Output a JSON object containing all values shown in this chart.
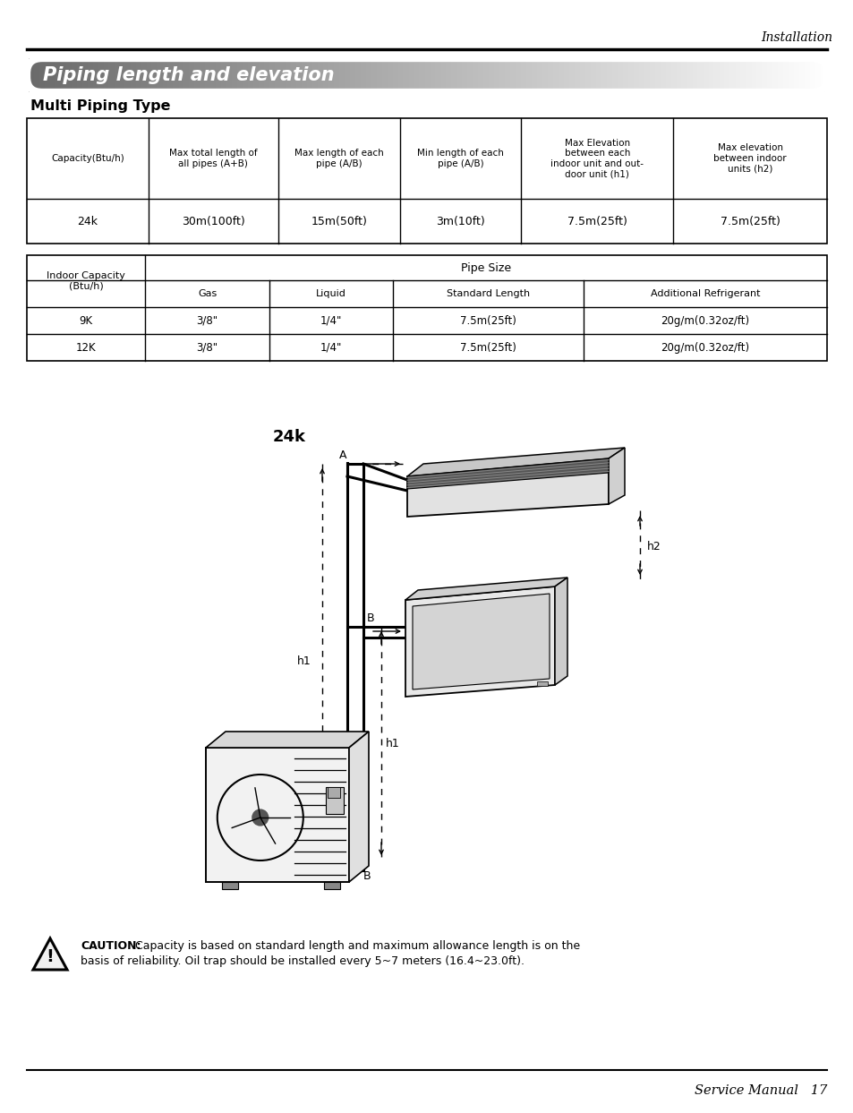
{
  "top_right_label": "Installation",
  "page_title": "Piping length and elevation",
  "section_header": "Multi Piping Type",
  "table1_headers": [
    "Capacity(Btu/h)",
    "Max total length of\nall pipes (A+B)",
    "Max length of each\npipe (A/B)",
    "Min length of each\npipe (A/B)",
    "Max Elevation\nbetween each\nindoor unit and out-\ndoor unit (h1)",
    "Max elevation\nbetween indoor\nunits (h2)"
  ],
  "table1_row": [
    "24k",
    "30m(100ft)",
    "15m(50ft)",
    "3m(10ft)",
    "7.5m(25ft)",
    "7.5m(25ft)"
  ],
  "table2_span_header": "Pipe Size",
  "table2_col1_header": "Indoor Capacity\n(Btu/h)",
  "table2_sub_headers": [
    "Gas",
    "Liquid",
    "Standard Length",
    "Additional Refrigerant"
  ],
  "table2_rows": [
    [
      "9K",
      "3/8\"",
      "1/4\"",
      "7.5m(25ft)",
      "20g/m(0.32oz/ft)"
    ],
    [
      "12K",
      "3/8\"",
      "1/4\"",
      "7.5m(25ft)",
      "20g/m(0.32oz/ft)"
    ]
  ],
  "diagram_label": "24k",
  "caution_bold": "CAUTION:",
  "caution_rest": " Capacity is based on standard length and maximum allowance length is on the\nbasis of reliability. Oil trap should be installed every 5~7 meters (16.4~23.0ft).",
  "bottom_label": "Service Manual   17"
}
